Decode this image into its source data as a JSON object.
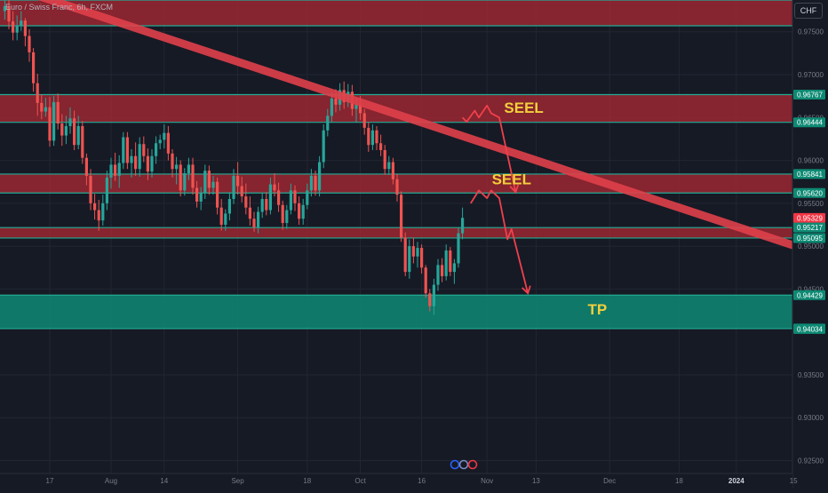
{
  "header": {
    "title": "Euro / Swiss Franc, 6h, FXCM",
    "currency": "CHF"
  },
  "colors": {
    "background": "#161a25",
    "zone_red": "#b22833",
    "zone_green": "#0e8a74",
    "line_teal": "#22ab94",
    "trend_line": "#e0404a",
    "arrow": "#f0404c",
    "label_yellow": "#f2cf3c",
    "candle_up": "#26a69a",
    "candle_down": "#ef5350",
    "price_badge": "#f23645",
    "axis_text": "#787b86"
  },
  "chart_data": {
    "type": "candlestick",
    "symbol": "EURCHF",
    "timeframe": "6h",
    "ylim": [
      0.9235,
      0.9787
    ],
    "y_ticks": [
      "0.97500",
      "0.97000",
      "0.96500",
      "0.96000",
      "0.95500",
      "0.95000",
      "0.94500",
      "0.93500",
      "0.93000",
      "0.92500"
    ],
    "x_ticks": [
      "17",
      "Aug",
      "14",
      "Sep",
      "18",
      "Oct",
      "16",
      "Nov",
      "13",
      "Dec",
      "18",
      "2024",
      "15"
    ],
    "price_labels": [
      {
        "value": "0.96767",
        "style": "teal"
      },
      {
        "value": "0.96444",
        "style": "teal"
      },
      {
        "value": "0.95841",
        "style": "teal"
      },
      {
        "value": "0.95620",
        "style": "teal"
      },
      {
        "value": "0.95329",
        "style": "current"
      },
      {
        "value": "0.95217",
        "style": "teal"
      },
      {
        "value": "0.95095",
        "style": "teal"
      },
      {
        "value": "0.94429",
        "style": "teal"
      },
      {
        "value": "0.94039",
        "style": "teal"
      },
      {
        "value": "0.94034",
        "style": "teal"
      }
    ],
    "zones": [
      {
        "kind": "resistance",
        "top": 0.9787,
        "bottom": 0.9757
      },
      {
        "kind": "resistance",
        "top": 0.96767,
        "bottom": 0.96444
      },
      {
        "kind": "resistance",
        "top": 0.95841,
        "bottom": 0.9562
      },
      {
        "kind": "resistance",
        "top": 0.95217,
        "bottom": 0.95095
      },
      {
        "kind": "target",
        "top": 0.94429,
        "bottom": 0.94039
      }
    ],
    "annotations": [
      {
        "text": "SEEL",
        "x": "Nov 10",
        "y": 0.966
      },
      {
        "text": "SEEL",
        "x": "Nov 7",
        "y": 0.9577
      },
      {
        "text": "TP",
        "x": "Nov 28",
        "y": 0.9425
      }
    ],
    "trendline": [
      {
        "x": "Jul 9",
        "y": 0.98
      },
      {
        "x": "Jan 20",
        "y": 0.9493
      }
    ],
    "projections": [
      {
        "points": [
          [
            "Oct 26",
            0.965
          ],
          [
            "Oct 27",
            0.9645
          ],
          [
            "Oct 29",
            0.9658
          ],
          [
            "Oct 30",
            0.965
          ],
          [
            "Nov 1",
            0.9664
          ],
          [
            "Nov 2",
            0.9655
          ],
          [
            "Nov 4",
            0.965
          ],
          [
            "Nov 8",
            0.9563
          ]
        ]
      },
      {
        "points": [
          [
            "Oct 28",
            0.955
          ],
          [
            "Oct 30",
            0.9565
          ],
          [
            "Nov 1",
            0.9556
          ],
          [
            "Nov 2",
            0.9565
          ],
          [
            "Nov 4",
            0.9556
          ],
          [
            "Nov 6",
            0.9508
          ],
          [
            "Nov 7",
            0.952
          ],
          [
            "Nov 11",
            0.9445
          ]
        ]
      }
    ],
    "candles": [
      [
        "Jul 6",
        0.9774,
        0.9793,
        0.9764,
        0.978
      ],
      [
        "Jul 7",
        0.978,
        0.9791,
        0.9753,
        0.9762
      ],
      [
        "Jul 8",
        0.9762,
        0.9774,
        0.974,
        0.9749
      ],
      [
        "Jul 9",
        0.9749,
        0.9769,
        0.974,
        0.9757
      ],
      [
        "Jul 10",
        0.9757,
        0.9774,
        0.9751,
        0.9763
      ],
      [
        "Jul 11",
        0.9763,
        0.9766,
        0.9733,
        0.9745
      ],
      [
        "Jul 12",
        0.9745,
        0.9753,
        0.9715,
        0.9726
      ],
      [
        "Jul 13",
        0.9726,
        0.9731,
        0.968,
        0.969
      ],
      [
        "Jul 14",
        0.969,
        0.9701,
        0.9652,
        0.9667
      ],
      [
        "Jul 15",
        0.9667,
        0.9677,
        0.9648,
        0.9657
      ],
      [
        "Jul 16",
        0.9657,
        0.9673,
        0.9651,
        0.9662
      ],
      [
        "Jul 17",
        0.9662,
        0.9674,
        0.9616,
        0.9623
      ],
      [
        "Jul 18",
        0.9623,
        0.9675,
        0.9617,
        0.9668
      ],
      [
        "Jul 19",
        0.9668,
        0.9678,
        0.9636,
        0.9643
      ],
      [
        "Jul 20",
        0.9643,
        0.9654,
        0.9617,
        0.9629
      ],
      [
        "Jul 21",
        0.9629,
        0.9652,
        0.9619,
        0.964
      ],
      [
        "Jul 22",
        0.964,
        0.9662,
        0.9631,
        0.9649
      ],
      [
        "Jul 23",
        0.9649,
        0.9658,
        0.9612,
        0.9618
      ],
      [
        "Jul 24",
        0.9618,
        0.9652,
        0.9613,
        0.964
      ],
      [
        "Jul 25",
        0.964,
        0.9646,
        0.9596,
        0.9603
      ],
      [
        "Jul 26",
        0.9603,
        0.9608,
        0.9571,
        0.9582
      ],
      [
        "Jul 27",
        0.9582,
        0.959,
        0.9542,
        0.955
      ],
      [
        "Jul 28",
        0.955,
        0.9561,
        0.9531,
        0.9542
      ],
      [
        "Jul 29",
        0.9542,
        0.9554,
        0.9518,
        0.953
      ],
      [
        "Jul 30",
        0.953,
        0.956,
        0.9524,
        0.955
      ],
      [
        "Jul 31",
        0.955,
        0.9588,
        0.9542,
        0.958
      ],
      [
        "Aug 1",
        0.958,
        0.9603,
        0.9567,
        0.9595
      ],
      [
        "Aug 2",
        0.9595,
        0.9609,
        0.9576,
        0.9582
      ],
      [
        "Aug 3",
        0.9582,
        0.9606,
        0.9568,
        0.9597
      ],
      [
        "Aug 4",
        0.9597,
        0.9633,
        0.959,
        0.9627
      ],
      [
        "Aug 5",
        0.9627,
        0.9633,
        0.959,
        0.9597
      ],
      [
        "Aug 6",
        0.9597,
        0.9613,
        0.958,
        0.9605
      ],
      [
        "Aug 7",
        0.9605,
        0.9621,
        0.9582,
        0.959
      ],
      [
        "Aug 8",
        0.959,
        0.9627,
        0.9581,
        0.9619
      ],
      [
        "Aug 9",
        0.9619,
        0.9628,
        0.9598,
        0.9605
      ],
      [
        "Aug 10",
        0.9605,
        0.9614,
        0.9577,
        0.9587
      ],
      [
        "Aug 11",
        0.9587,
        0.9613,
        0.958,
        0.9605
      ],
      [
        "Aug 12",
        0.9605,
        0.9628,
        0.9596,
        0.962
      ],
      [
        "Aug 13",
        0.962,
        0.963,
        0.9613,
        0.9624
      ],
      [
        "Aug 14",
        0.9624,
        0.9642,
        0.9614,
        0.9632
      ],
      [
        "Aug 15",
        0.9632,
        0.964,
        0.96,
        0.9608
      ],
      [
        "Aug 16",
        0.9608,
        0.9613,
        0.958,
        0.959
      ],
      [
        "Aug 17",
        0.959,
        0.9604,
        0.9572,
        0.9595
      ],
      [
        "Aug 18",
        0.9595,
        0.96,
        0.9558,
        0.9565
      ],
      [
        "Aug 19",
        0.9565,
        0.9591,
        0.9559,
        0.9585
      ],
      [
        "Aug 20",
        0.9585,
        0.9603,
        0.9577,
        0.9595
      ],
      [
        "Aug 21",
        0.9595,
        0.9603,
        0.956,
        0.9568
      ],
      [
        "Aug 22",
        0.9568,
        0.9576,
        0.9545,
        0.9552
      ],
      [
        "Aug 23",
        0.9552,
        0.9569,
        0.9542,
        0.9562
      ],
      [
        "Aug 24",
        0.9562,
        0.9595,
        0.9555,
        0.9588
      ],
      [
        "Aug 25",
        0.9588,
        0.9594,
        0.956,
        0.9568
      ],
      [
        "Aug 26",
        0.9568,
        0.9582,
        0.956,
        0.9575
      ],
      [
        "Aug 27",
        0.9575,
        0.958,
        0.9537,
        0.9545
      ],
      [
        "Aug 28",
        0.9545,
        0.9555,
        0.9518,
        0.9525
      ],
      [
        "Aug 29",
        0.9525,
        0.9543,
        0.9518,
        0.9538
      ],
      [
        "Aug 30",
        0.9538,
        0.9563,
        0.953,
        0.9555
      ],
      [
        "Aug 31",
        0.9555,
        0.959,
        0.9549,
        0.9582
      ],
      [
        "Sep 1",
        0.9582,
        0.9598,
        0.956,
        0.957
      ],
      [
        "Sep 2",
        0.957,
        0.9581,
        0.9551,
        0.9558
      ],
      [
        "Sep 3",
        0.9558,
        0.9573,
        0.9537,
        0.9545
      ],
      [
        "Sep 4",
        0.9545,
        0.9558,
        0.9524,
        0.9532
      ],
      [
        "Sep 5",
        0.9532,
        0.954,
        0.9517,
        0.9522
      ],
      [
        "Sep 6",
        0.9522,
        0.9546,
        0.9515,
        0.954
      ],
      [
        "Sep 7",
        0.954,
        0.9562,
        0.9533,
        0.9555
      ],
      [
        "Sep 8",
        0.9555,
        0.9563,
        0.9536,
        0.9542
      ],
      [
        "Sep 9",
        0.9542,
        0.958,
        0.9537,
        0.9572
      ],
      [
        "Sep 10",
        0.9572,
        0.9585,
        0.9558,
        0.9565
      ],
      [
        "Sep 11",
        0.9565,
        0.9574,
        0.954,
        0.9548
      ],
      [
        "Sep 12",
        0.9548,
        0.9553,
        0.9519,
        0.9527
      ],
      [
        "Sep 13",
        0.9527,
        0.9548,
        0.952,
        0.9542
      ],
      [
        "Sep 14",
        0.9542,
        0.9573,
        0.9537,
        0.9565
      ],
      [
        "Sep 15",
        0.9565,
        0.9571,
        0.9541,
        0.955
      ],
      [
        "Sep 16",
        0.955,
        0.9558,
        0.9525,
        0.9532
      ],
      [
        "Sep 17",
        0.9532,
        0.9555,
        0.9525,
        0.9548
      ],
      [
        "Sep 18",
        0.9548,
        0.9573,
        0.9543,
        0.9565
      ],
      [
        "Sep 19",
        0.9565,
        0.959,
        0.9558,
        0.9582
      ],
      [
        "Sep 20",
        0.9582,
        0.9588,
        0.9559,
        0.9565
      ],
      [
        "Sep 21",
        0.9565,
        0.9605,
        0.9558,
        0.9598
      ],
      [
        "Sep 22",
        0.9598,
        0.9642,
        0.9591,
        0.9635
      ],
      [
        "Sep 23",
        0.9635,
        0.966,
        0.9628,
        0.9652
      ],
      [
        "Sep 24",
        0.9652,
        0.968,
        0.9645,
        0.9672
      ],
      [
        "Sep 25",
        0.9672,
        0.9683,
        0.9656,
        0.9665
      ],
      [
        "Sep 26",
        0.9665,
        0.969,
        0.9658,
        0.9682
      ],
      [
        "Sep 27",
        0.9682,
        0.9692,
        0.966,
        0.9668
      ],
      [
        "Sep 28",
        0.9668,
        0.9689,
        0.9662,
        0.968
      ],
      [
        "Sep 29",
        0.968,
        0.9688,
        0.9652,
        0.966
      ],
      [
        "Sep 30",
        0.966,
        0.9673,
        0.9645,
        0.9665
      ],
      [
        "Oct 1",
        0.9665,
        0.9675,
        0.9647,
        0.9655
      ],
      [
        "Oct 2",
        0.9655,
        0.966,
        0.963,
        0.9638
      ],
      [
        "Oct 3",
        0.9638,
        0.9645,
        0.961,
        0.9618
      ],
      [
        "Oct 4",
        0.9618,
        0.9642,
        0.9612,
        0.9635
      ],
      [
        "Oct 5",
        0.9635,
        0.964,
        0.9612,
        0.962
      ],
      [
        "Oct 6",
        0.962,
        0.963,
        0.9605,
        0.9612
      ],
      [
        "Oct 7",
        0.9612,
        0.9618,
        0.9583,
        0.959
      ],
      [
        "Oct 8",
        0.959,
        0.9605,
        0.9583,
        0.9598
      ],
      [
        "Oct 9",
        0.9598,
        0.9603,
        0.9572,
        0.9578
      ],
      [
        "Oct 10",
        0.9578,
        0.9584,
        0.9552,
        0.956
      ],
      [
        "Oct 11",
        0.956,
        0.9564,
        0.9505,
        0.951
      ],
      [
        "Oct 12",
        0.951,
        0.9516,
        0.9465,
        0.947
      ],
      [
        "Oct 13",
        0.947,
        0.9508,
        0.9462,
        0.95
      ],
      [
        "Oct 14",
        0.95,
        0.951,
        0.948,
        0.9488
      ],
      [
        "Oct 15",
        0.9488,
        0.9505,
        0.9475,
        0.9498
      ],
      [
        "Oct 16",
        0.9498,
        0.9502,
        0.9468,
        0.9475
      ],
      [
        "Oct 17",
        0.9475,
        0.9478,
        0.944,
        0.9445
      ],
      [
        "Oct 18",
        0.9445,
        0.945,
        0.9424,
        0.943
      ],
      [
        "Oct 19",
        0.943,
        0.9462,
        0.942,
        0.9455
      ],
      [
        "Oct 20",
        0.9455,
        0.9485,
        0.9448,
        0.9478
      ],
      [
        "Oct 21",
        0.9478,
        0.9486,
        0.9458,
        0.9465
      ],
      [
        "Oct 22",
        0.9465,
        0.9502,
        0.946,
        0.9495
      ],
      [
        "Oct 23",
        0.9495,
        0.9499,
        0.9465,
        0.947
      ],
      [
        "Oct 24",
        0.947,
        0.9485,
        0.9456,
        0.948
      ],
      [
        "Oct 25",
        0.948,
        0.9522,
        0.9475,
        0.9515
      ],
      [
        "Oct 26",
        0.9515,
        0.9545,
        0.9508,
        0.9533
      ]
    ]
  }
}
